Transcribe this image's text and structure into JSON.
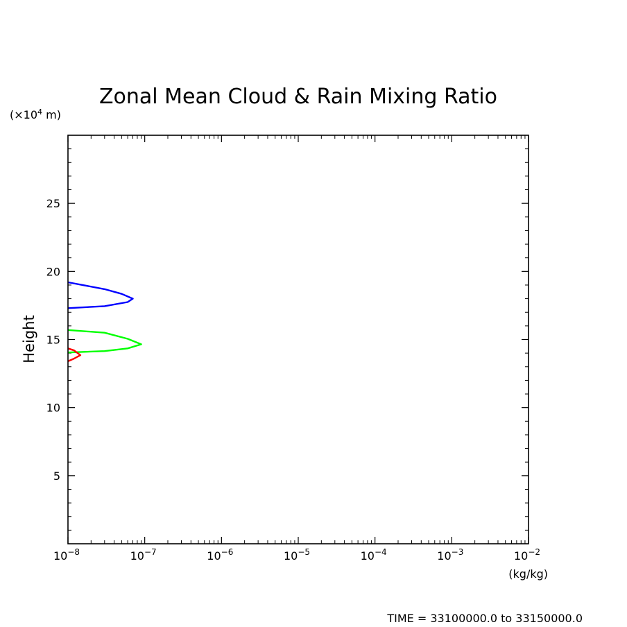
{
  "chart_data": {
    "type": "line",
    "title": "Zonal Mean Cloud & Rain Mixing Ratio",
    "ylabel": "Height",
    "yunit_prefix": "(×10",
    "yunit_exp": "4",
    "yunit_suffix": " m)",
    "xunit": "(kg/kg)",
    "footer": "TIME = 33100000.0 to 33150000.0",
    "xscale": "log",
    "xlim": [
      1e-08,
      0.01
    ],
    "ylim": [
      0,
      30
    ],
    "grid": false,
    "x_ticks": [
      {
        "mant": "10",
        "exp": "−8",
        "value": 1e-08
      },
      {
        "mant": "10",
        "exp": "−7",
        "value": 1e-07
      },
      {
        "mant": "10",
        "exp": "−6",
        "value": 1e-06
      },
      {
        "mant": "10",
        "exp": "−5",
        "value": 1e-05
      },
      {
        "mant": "10",
        "exp": "−4",
        "value": 0.0001
      },
      {
        "mant": "10",
        "exp": "−3",
        "value": 0.001
      },
      {
        "mant": "10",
        "exp": "−2",
        "value": 0.01
      }
    ],
    "y_ticks": [
      {
        "label": "5",
        "value": 5
      },
      {
        "label": "10",
        "value": 10
      },
      {
        "label": "15",
        "value": 15
      },
      {
        "label": "20",
        "value": 20
      },
      {
        "label": "25",
        "value": 25
      }
    ],
    "series": [
      {
        "color": "#0000ff",
        "points": [
          [
            1e-08,
            19.2
          ],
          [
            3e-08,
            18.7
          ],
          [
            5e-08,
            18.35
          ],
          [
            7e-08,
            18.0
          ],
          [
            6e-08,
            17.75
          ],
          [
            3e-08,
            17.45
          ],
          [
            1e-08,
            17.3
          ]
        ]
      },
      {
        "color": "#00ff00",
        "points": [
          [
            1e-08,
            15.7
          ],
          [
            3e-08,
            15.5
          ],
          [
            6e-08,
            15.05
          ],
          [
            9e-08,
            14.65
          ],
          [
            6e-08,
            14.35
          ],
          [
            3e-08,
            14.15
          ],
          [
            1e-08,
            14.05
          ]
        ]
      },
      {
        "color": "#ff0000",
        "points": [
          [
            1e-08,
            14.35
          ],
          [
            1.2e-08,
            14.2
          ],
          [
            1.45e-08,
            13.85
          ],
          [
            1.2e-08,
            13.6
          ],
          [
            1e-08,
            13.4
          ]
        ]
      }
    ]
  }
}
